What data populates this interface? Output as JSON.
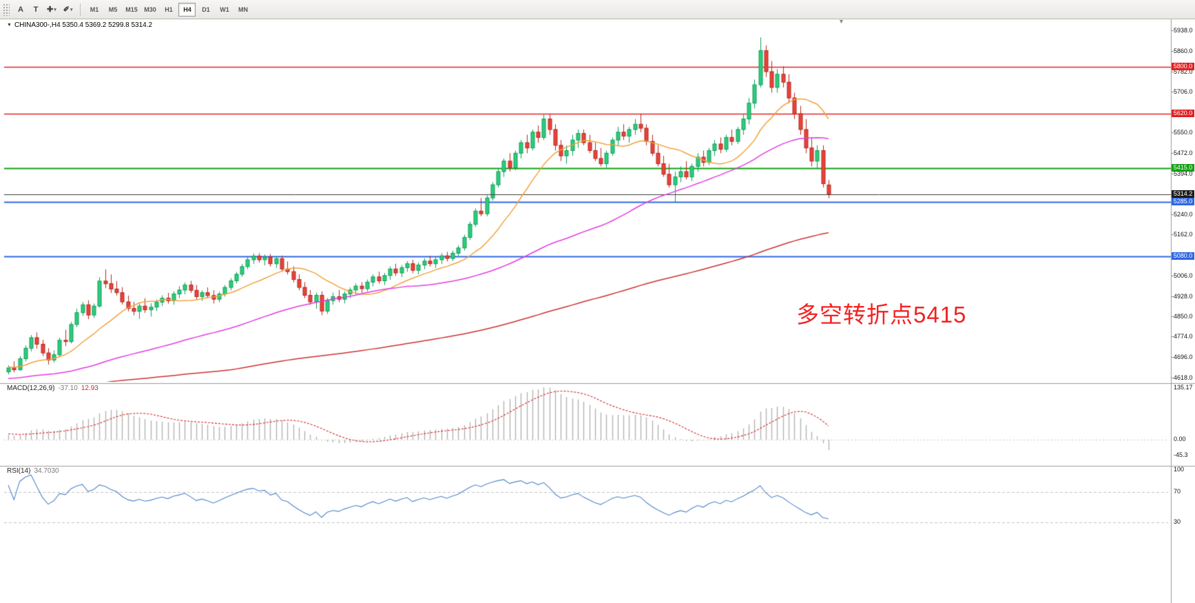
{
  "icons": {
    "collapse": "▼",
    "shift_marker": "▼",
    "dropdown": "▾",
    "cursor_tool": "✚",
    "draw_tool": "✐"
  },
  "toolbar": {
    "tool_a": "A",
    "tool_t": "T",
    "timeframes": [
      "M1",
      "M5",
      "M15",
      "M30",
      "H1",
      "H4",
      "D1",
      "W1",
      "MN"
    ],
    "active_timeframe": "H4"
  },
  "chart": {
    "title": "CHINA300-,H4 5350.4 5369.2 5299.8 5314.2",
    "symbol": "CHINA300-",
    "period": "H4",
    "ohlc": {
      "open": "5350.4",
      "high": "5369.2",
      "low": "5299.8",
      "close": "5314.2"
    },
    "annotation": {
      "text": "多空转折点5415",
      "color": "#f32222"
    },
    "price_line": {
      "label": "5314.2",
      "value": 5314.2,
      "line_color": "#3a3a3a",
      "badge_color": "#1b1b1b"
    }
  },
  "macd": {
    "name": "MACD(12,26,9)",
    "value": "-37.10",
    "signal": "12.93",
    "axis_labels": [
      "135.17",
      "0.00",
      "-45.3"
    ],
    "histogram_color": "#b2b2b2",
    "signal_color": "#d42424"
  },
  "rsi": {
    "name": "RSI(14)",
    "value": "34.7030",
    "axis_labels": [
      "100",
      "70",
      "30"
    ],
    "levels": [
      70,
      30
    ],
    "line_color": "#4d83c9"
  },
  "chart_data": {
    "type": "candlestick",
    "symbol": "CHINA300-",
    "timeframe": "H4",
    "title": "CHINA300-,H4",
    "last_ohlc": {
      "open": 5350.4,
      "high": 5369.2,
      "low": 5299.8,
      "close": 5314.2
    },
    "y_axis": {
      "min": 4618,
      "max": 5938
    },
    "price_axis_ticks": [
      "5938.0",
      "5860.0",
      "5782.0",
      "5706.0",
      "5550.0",
      "5472.0",
      "5394.0",
      "5240.0",
      "5162.0",
      "5006.0",
      "4928.0",
      "4850.0",
      "4774.0",
      "4696.0",
      "4618.0"
    ],
    "horizontal_levels": [
      {
        "label": "5800.0",
        "value": 5800,
        "color": "#e02020",
        "width": 1.3
      },
      {
        "label": "5620.0",
        "value": 5620,
        "color": "#e02020",
        "width": 1.3
      },
      {
        "label": "5415.0",
        "value": 5415,
        "color": "#11a011",
        "width": 1.8
      },
      {
        "label": "5285.0",
        "value": 5285,
        "color": "#2f66e0",
        "width": 1.8
      },
      {
        "label": "5080.0",
        "value": 5080,
        "color": "#2f66e0",
        "width": 1.8
      }
    ],
    "up_fill": "#2ecc7c",
    "up_edge": "#0e9e58",
    "down_fill": "#e8443a",
    "down_edge": "#b3271f",
    "moving_averages": [
      {
        "name": "ma-fast",
        "period": 13,
        "color": "#f0a23c"
      },
      {
        "name": "ma-mid",
        "period": 55,
        "color": "#e23ae2"
      },
      {
        "name": "ma-slow",
        "period": 150,
        "color": "#cc2f2f"
      }
    ],
    "indicators": {
      "macd": {
        "parameters": "12,26,9",
        "current": -37.1,
        "signal": 12.93,
        "axis_max": 135.17,
        "axis_min": -45.3
      },
      "rsi": {
        "parameters": "14",
        "current": 34.703,
        "levels": [
          70,
          30
        ]
      }
    },
    "candles_ohlc": [
      [
        4640,
        4665,
        4630,
        4655
      ],
      [
        4655,
        4680,
        4638,
        4648
      ],
      [
        4648,
        4700,
        4644,
        4690
      ],
      [
        4690,
        4740,
        4680,
        4730
      ],
      [
        4730,
        4780,
        4718,
        4770
      ],
      [
        4770,
        4790,
        4728,
        4745
      ],
      [
        4745,
        4762,
        4700,
        4712
      ],
      [
        4712,
        4730,
        4668,
        4685
      ],
      [
        4685,
        4722,
        4675,
        4705
      ],
      [
        4705,
        4770,
        4698,
        4760
      ],
      [
        4760,
        4800,
        4738,
        4755
      ],
      [
        4755,
        4830,
        4748,
        4820
      ],
      [
        4820,
        4880,
        4810,
        4865
      ],
      [
        4865,
        4905,
        4853,
        4895
      ],
      [
        4895,
        4912,
        4840,
        4856
      ],
      [
        4856,
        4900,
        4845,
        4890
      ],
      [
        4890,
        5000,
        4884,
        4985
      ],
      [
        4985,
        5030,
        4958,
        4975
      ],
      [
        4975,
        5010,
        4940,
        4955
      ],
      [
        4955,
        4985,
        4930,
        4941
      ],
      [
        4941,
        4962,
        4896,
        4906
      ],
      [
        4906,
        4930,
        4870,
        4881
      ],
      [
        4881,
        4906,
        4855,
        4870
      ],
      [
        4870,
        4900,
        4841,
        4890
      ],
      [
        4890,
        4920,
        4864,
        4876
      ],
      [
        4876,
        4901,
        4850,
        4886
      ],
      [
        4886,
        4915,
        4871,
        4905
      ],
      [
        4905,
        4931,
        4890,
        4920
      ],
      [
        4920,
        4940,
        4899,
        4910
      ],
      [
        4910,
        4946,
        4895,
        4936
      ],
      [
        4936,
        4966,
        4920,
        4951
      ],
      [
        4951,
        4980,
        4935,
        4970
      ],
      [
        4970,
        4986,
        4940,
        4950
      ],
      [
        4950,
        4970,
        4915,
        4926
      ],
      [
        4926,
        4950,
        4910,
        4941
      ],
      [
        4941,
        4961,
        4920,
        4930
      ],
      [
        4930,
        4950,
        4900,
        4916
      ],
      [
        4916,
        4945,
        4905,
        4936
      ],
      [
        4936,
        4970,
        4926,
        4961
      ],
      [
        4961,
        4996,
        4950,
        4986
      ],
      [
        4986,
        5020,
        4976,
        5011
      ],
      [
        5011,
        5050,
        5001,
        5040
      ],
      [
        5040,
        5076,
        5030,
        5066
      ],
      [
        5066,
        5090,
        5050,
        5080
      ],
      [
        5080,
        5091,
        5055,
        5066
      ],
      [
        5066,
        5086,
        5045,
        5076
      ],
      [
        5076,
        5088,
        5040,
        5051
      ],
      [
        5051,
        5080,
        5035,
        5070
      ],
      [
        5070,
        5082,
        5020,
        5031
      ],
      [
        5031,
        5060,
        5010,
        5021
      ],
      [
        5021,
        5041,
        4980,
        4991
      ],
      [
        4991,
        5011,
        4950,
        4961
      ],
      [
        4961,
        4981,
        4920,
        4931
      ],
      [
        4931,
        4951,
        4895,
        4906
      ],
      [
        4906,
        4941,
        4880,
        4931
      ],
      [
        4931,
        4946,
        4855,
        4871
      ],
      [
        4871,
        4921,
        4860,
        4911
      ],
      [
        4911,
        4941,
        4895,
        4926
      ],
      [
        4926,
        4951,
        4905,
        4916
      ],
      [
        4916,
        4946,
        4900,
        4936
      ],
      [
        4936,
        4961,
        4920,
        4951
      ],
      [
        4951,
        4976,
        4935,
        4966
      ],
      [
        4966,
        4981,
        4940,
        4956
      ],
      [
        4956,
        4991,
        4946,
        4981
      ],
      [
        4981,
        5011,
        4965,
        5001
      ],
      [
        5001,
        5021,
        4975,
        4986
      ],
      [
        4986,
        5016,
        4970,
        5006
      ],
      [
        5006,
        5041,
        4990,
        5031
      ],
      [
        5031,
        5051,
        5005,
        5016
      ],
      [
        5016,
        5046,
        5000,
        5036
      ],
      [
        5036,
        5061,
        5020,
        5051
      ],
      [
        5051,
        5066,
        5015,
        5026
      ],
      [
        5026,
        5056,
        5010,
        5046
      ],
      [
        5046,
        5071,
        5030,
        5061
      ],
      [
        5061,
        5081,
        5040,
        5051
      ],
      [
        5051,
        5076,
        5035,
        5066
      ],
      [
        5066,
        5091,
        5050,
        5081
      ],
      [
        5081,
        5096,
        5060,
        5071
      ],
      [
        5071,
        5101,
        5061,
        5091
      ],
      [
        5091,
        5121,
        5081,
        5111
      ],
      [
        5111,
        5161,
        5101,
        5151
      ],
      [
        5151,
        5211,
        5141,
        5201
      ],
      [
        5201,
        5261,
        5191,
        5251
      ],
      [
        5251,
        5301,
        5231,
        5241
      ],
      [
        5241,
        5311,
        5231,
        5301
      ],
      [
        5301,
        5361,
        5291,
        5351
      ],
      [
        5351,
        5411,
        5341,
        5401
      ],
      [
        5401,
        5451,
        5381,
        5441
      ],
      [
        5441,
        5471,
        5401,
        5416
      ],
      [
        5416,
        5481,
        5406,
        5471
      ],
      [
        5471,
        5521,
        5451,
        5511
      ],
      [
        5511,
        5541,
        5471,
        5491
      ],
      [
        5491,
        5561,
        5481,
        5551
      ],
      [
        5551,
        5576,
        5511,
        5531
      ],
      [
        5531,
        5621,
        5521,
        5601
      ],
      [
        5601,
        5621,
        5541,
        5561
      ],
      [
        5561,
        5581,
        5481,
        5501
      ],
      [
        5501,
        5521,
        5441,
        5461
      ],
      [
        5461,
        5501,
        5431,
        5481
      ],
      [
        5481,
        5541,
        5461,
        5521
      ],
      [
        5521,
        5561,
        5491,
        5546
      ],
      [
        5546,
        5561,
        5501,
        5511
      ],
      [
        5511,
        5541,
        5471,
        5481
      ],
      [
        5481,
        5511,
        5441,
        5451
      ],
      [
        5451,
        5491,
        5421,
        5431
      ],
      [
        5431,
        5481,
        5416,
        5471
      ],
      [
        5471,
        5531,
        5461,
        5521
      ],
      [
        5521,
        5571,
        5501,
        5551
      ],
      [
        5551,
        5581,
        5521,
        5536
      ],
      [
        5536,
        5571,
        5511,
        5561
      ],
      [
        5561,
        5601,
        5541,
        5581
      ],
      [
        5581,
        5621,
        5551,
        5566
      ],
      [
        5566,
        5581,
        5501,
        5516
      ],
      [
        5516,
        5541,
        5461,
        5471
      ],
      [
        5471,
        5501,
        5421,
        5431
      ],
      [
        5431,
        5461,
        5381,
        5391
      ],
      [
        5391,
        5431,
        5341,
        5351
      ],
      [
        5351,
        5401,
        5285,
        5381
      ],
      [
        5381,
        5421,
        5361,
        5401
      ],
      [
        5401,
        5441,
        5371,
        5381
      ],
      [
        5381,
        5431,
        5365,
        5421
      ],
      [
        5421,
        5471,
        5401,
        5456
      ],
      [
        5456,
        5481,
        5421,
        5436
      ],
      [
        5436,
        5491,
        5426,
        5481
      ],
      [
        5481,
        5521,
        5461,
        5506
      ],
      [
        5506,
        5531,
        5471,
        5486
      ],
      [
        5486,
        5541,
        5476,
        5531
      ],
      [
        5531,
        5561,
        5501,
        5516
      ],
      [
        5516,
        5571,
        5506,
        5561
      ],
      [
        5561,
        5621,
        5541,
        5601
      ],
      [
        5601,
        5681,
        5581,
        5661
      ],
      [
        5661,
        5751,
        5641,
        5731
      ],
      [
        5731,
        5911,
        5721,
        5861
      ],
      [
        5861,
        5881,
        5761,
        5781
      ],
      [
        5781,
        5821,
        5701,
        5721
      ],
      [
        5721,
        5791,
        5701,
        5771
      ],
      [
        5771,
        5801,
        5721,
        5741
      ],
      [
        5741,
        5771,
        5661,
        5681
      ],
      [
        5681,
        5701,
        5601,
        5621
      ],
      [
        5621,
        5651,
        5541,
        5561
      ],
      [
        5561,
        5601,
        5471,
        5491
      ],
      [
        5491,
        5531,
        5421,
        5441
      ],
      [
        5441,
        5501,
        5411,
        5481
      ],
      [
        5481,
        5501,
        5341,
        5355
      ],
      [
        5350.4,
        5369.2,
        5299.8,
        5314.2
      ]
    ]
  }
}
